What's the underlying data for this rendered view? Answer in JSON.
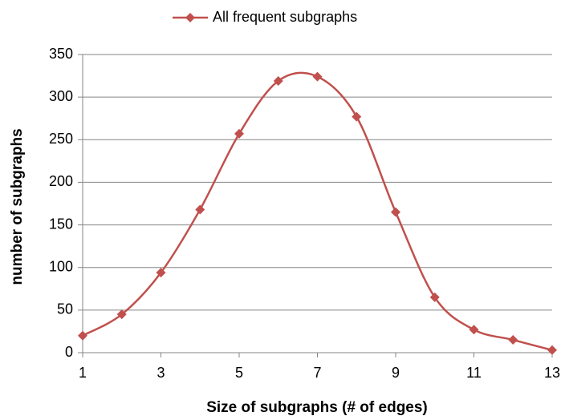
{
  "chart_data": {
    "type": "line",
    "legend_label": "All frequent subgraphs",
    "x_label": "Size of subgraphs (# of edges)",
    "y_label": "number of subgraphs",
    "x": [
      1,
      2,
      3,
      4,
      5,
      6,
      7,
      8,
      9,
      10,
      11,
      12,
      13
    ],
    "series": [
      {
        "name": "All frequent subgraphs",
        "color": "#c0504d",
        "values": [
          20,
          45,
          94,
          168,
          257,
          319,
          324,
          277,
          165,
          65,
          27,
          15,
          3
        ]
      }
    ],
    "xlim": [
      1,
      13
    ],
    "xticks": [
      1,
      3,
      5,
      7,
      9,
      11,
      13
    ],
    "ylim": [
      0,
      350
    ],
    "yticks": [
      0,
      50,
      100,
      150,
      200,
      250,
      300,
      350
    ],
    "grid": true,
    "legend": "top",
    "smooth": true
  }
}
